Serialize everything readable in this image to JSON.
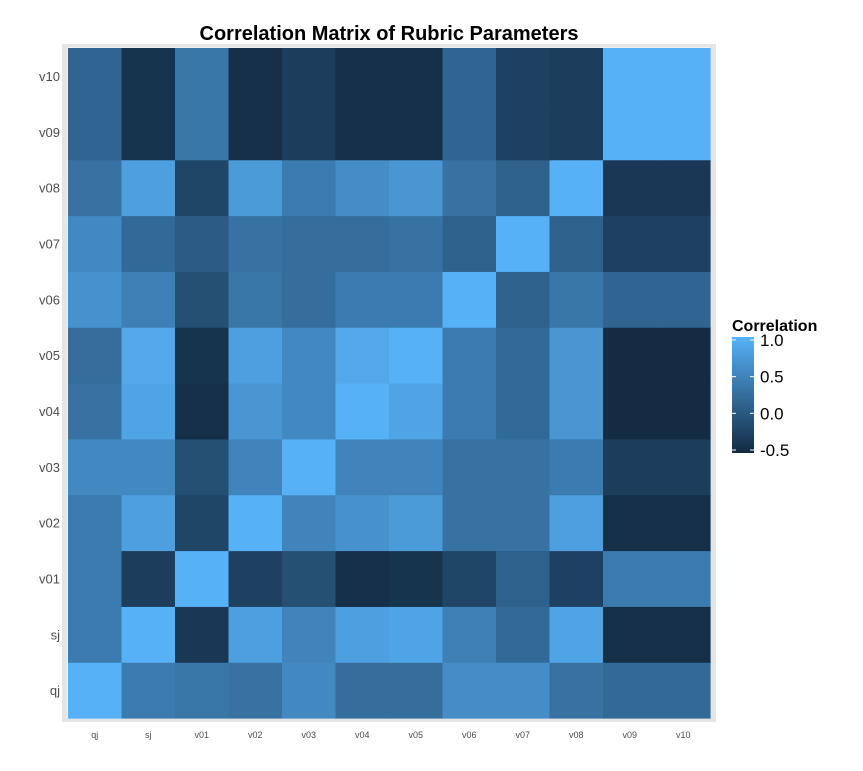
{
  "chart_data": {
    "type": "heatmap",
    "title": "Correlation Matrix of Rubric Parameters",
    "x_labels": [
      "qj",
      "sj",
      "v01",
      "v02",
      "v03",
      "v04",
      "v05",
      "v06",
      "v07",
      "v08",
      "v09",
      "v10"
    ],
    "y_labels": [
      "qj",
      "sj",
      "v01",
      "v02",
      "v03",
      "v04",
      "v05",
      "v06",
      "v07",
      "v08",
      "v09",
      "v10"
    ],
    "values": [
      [
        1.0,
        0.4,
        0.35,
        0.3,
        0.55,
        0.25,
        0.25,
        0.6,
        0.6,
        0.3,
        0.2,
        0.2
      ],
      [
        0.4,
        1.0,
        -0.35,
        0.8,
        0.5,
        0.8,
        0.85,
        0.45,
        0.2,
        0.85,
        -0.45,
        -0.45
      ],
      [
        0.4,
        -0.3,
        1.0,
        -0.25,
        -0.1,
        -0.45,
        -0.4,
        -0.2,
        0.1,
        -0.25,
        0.4,
        0.4
      ],
      [
        0.4,
        0.8,
        -0.2,
        1.0,
        0.5,
        0.65,
        0.75,
        0.3,
        0.3,
        0.8,
        -0.45,
        -0.45
      ],
      [
        0.55,
        0.55,
        -0.1,
        0.5,
        1.0,
        0.5,
        0.5,
        0.3,
        0.3,
        0.4,
        -0.3,
        -0.3
      ],
      [
        0.3,
        0.85,
        -0.45,
        0.7,
        0.55,
        1.0,
        0.85,
        0.4,
        0.2,
        0.7,
        -0.5,
        -0.5
      ],
      [
        0.25,
        0.9,
        -0.4,
        0.8,
        0.55,
        0.9,
        1.0,
        0.4,
        0.2,
        0.7,
        -0.5,
        -0.5
      ],
      [
        0.65,
        0.45,
        -0.1,
        0.35,
        0.25,
        0.4,
        0.4,
        1.0,
        0.1,
        0.35,
        0.15,
        0.15
      ],
      [
        0.55,
        0.2,
        0.05,
        0.3,
        0.25,
        0.25,
        0.3,
        0.1,
        1.0,
        0.1,
        -0.25,
        -0.25
      ],
      [
        0.3,
        0.8,
        -0.2,
        0.75,
        0.4,
        0.6,
        0.7,
        0.3,
        0.1,
        1.0,
        -0.35,
        -0.35
      ],
      [
        0.15,
        -0.4,
        0.35,
        -0.45,
        -0.3,
        -0.45,
        -0.45,
        0.15,
        -0.25,
        -0.3,
        1.0,
        1.0
      ],
      [
        0.15,
        -0.4,
        0.35,
        -0.45,
        -0.3,
        -0.45,
        -0.45,
        0.15,
        -0.25,
        -0.3,
        1.0,
        1.0
      ]
    ],
    "color_scale": {
      "low": "#132B43",
      "high": "#56B1F7",
      "min": -0.5,
      "max": 1.0
    },
    "legend": {
      "title": "Correlation",
      "ticks": [
        1.0,
        0.5,
        0.0,
        -0.5
      ],
      "tick_labels": [
        "1.0",
        "0.5",
        "0.0",
        "-0.5"
      ],
      "placement": "right"
    },
    "grid": true,
    "background_color": "#e5e5e5"
  }
}
